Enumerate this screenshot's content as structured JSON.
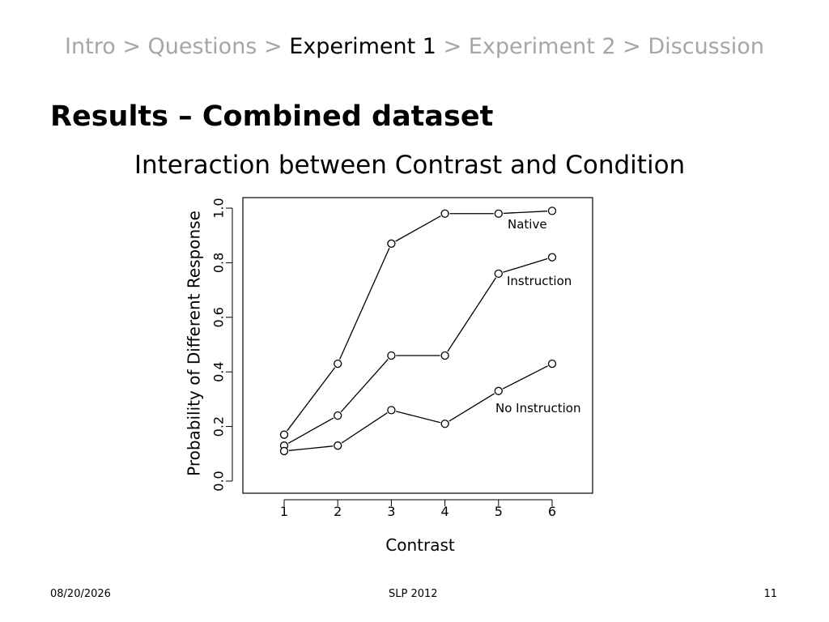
{
  "breadcrumb": {
    "items": [
      "Intro",
      "Questions",
      "Experiment 1",
      "Experiment 2",
      "Discussion"
    ],
    "current_index": 2,
    "separator": ">"
  },
  "title": "Results – Combined dataset",
  "subtitle": "Interaction between Contrast and Condition",
  "footer": {
    "date": "08/20/2026",
    "conference": "SLP 2012",
    "page": "11"
  },
  "colors": {
    "breadcrumb_inactive": "#a6a6a6",
    "breadcrumb_active": "#000000",
    "plot_ink": "#000000"
  },
  "chart_data": {
    "type": "line",
    "title": "",
    "xlabel": "Contrast",
    "ylabel": "Probability of Different Response",
    "x": [
      1,
      2,
      3,
      4,
      5,
      6
    ],
    "xticks": [
      "1",
      "2",
      "3",
      "4",
      "5",
      "6"
    ],
    "ylim": [
      0,
      1
    ],
    "yticks": [
      "0.0",
      "0.2",
      "0.4",
      "0.6",
      "0.8",
      "1.0"
    ],
    "grid": false,
    "legend": "direct labels on lines",
    "series": [
      {
        "name": "Native",
        "values": [
          0.17,
          0.43,
          0.87,
          0.98,
          0.98,
          0.99
        ]
      },
      {
        "name": "Instruction",
        "values": [
          0.13,
          0.24,
          0.46,
          0.46,
          0.76,
          0.82
        ]
      },
      {
        "name": "No Instruction",
        "values": [
          0.11,
          0.13,
          0.26,
          0.21,
          0.33,
          0.43
        ]
      }
    ]
  }
}
